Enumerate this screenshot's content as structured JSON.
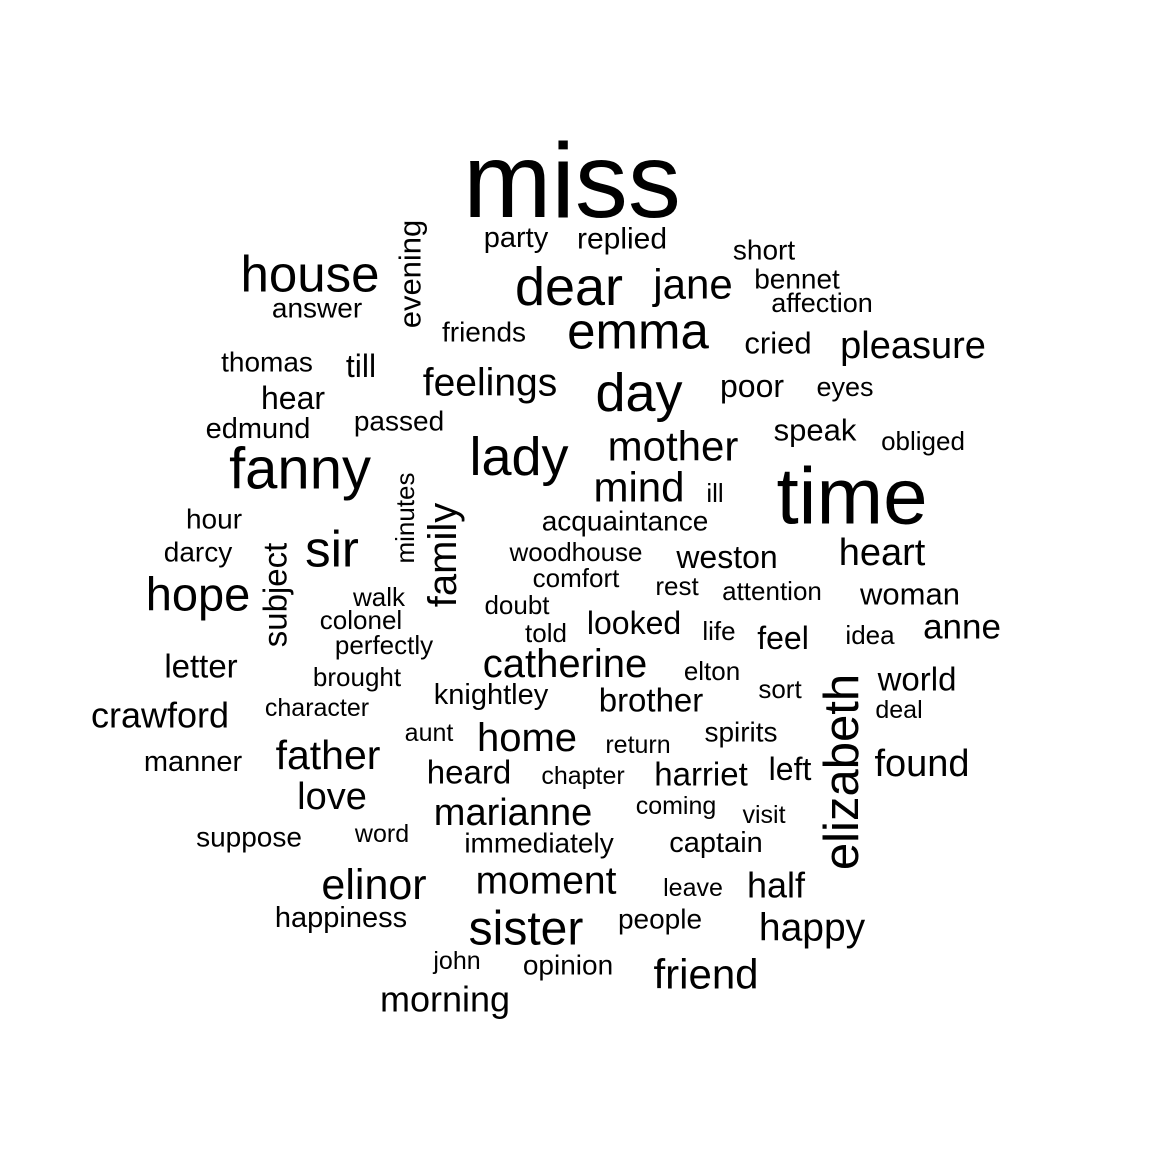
{
  "chart_data": {
    "type": "wordcloud",
    "text_color": "#000000",
    "background": "#ffffff",
    "words": [
      {
        "text": "miss",
        "weight": 100
      },
      {
        "text": "time",
        "weight": 80
      },
      {
        "text": "fanny",
        "weight": 60
      },
      {
        "text": "dear",
        "weight": 58
      },
      {
        "text": "lady",
        "weight": 57
      },
      {
        "text": "day",
        "weight": 56
      },
      {
        "text": "emma",
        "weight": 55
      },
      {
        "text": "house",
        "weight": 54
      },
      {
        "text": "sir",
        "weight": 54
      },
      {
        "text": "elizabeth",
        "weight": 52
      },
      {
        "text": "hope",
        "weight": 50
      },
      {
        "text": "sister",
        "weight": 50
      },
      {
        "text": "mother",
        "weight": 45
      },
      {
        "text": "mind",
        "weight": 45
      },
      {
        "text": "jane",
        "weight": 45
      },
      {
        "text": "catherine",
        "weight": 44
      },
      {
        "text": "elinor",
        "weight": 44
      },
      {
        "text": "family",
        "weight": 44
      },
      {
        "text": "father",
        "weight": 44
      },
      {
        "text": "friend",
        "weight": 43
      },
      {
        "text": "home",
        "weight": 42
      },
      {
        "text": "feelings",
        "weight": 42
      },
      {
        "text": "moment",
        "weight": 42
      },
      {
        "text": "heart",
        "weight": 40
      },
      {
        "text": "pleasure",
        "weight": 40
      },
      {
        "text": "happy",
        "weight": 40
      },
      {
        "text": "found",
        "weight": 40
      },
      {
        "text": "marianne",
        "weight": 40
      },
      {
        "text": "love",
        "weight": 40
      },
      {
        "text": "crawford",
        "weight": 39
      },
      {
        "text": "morning",
        "weight": 38
      },
      {
        "text": "half",
        "weight": 38
      },
      {
        "text": "weston",
        "weight": 36
      },
      {
        "text": "harriet",
        "weight": 36
      },
      {
        "text": "heard",
        "weight": 36
      },
      {
        "text": "brother",
        "weight": 36
      },
      {
        "text": "anne",
        "weight": 36
      },
      {
        "text": "letter",
        "weight": 36
      },
      {
        "text": "looked",
        "weight": 35
      },
      {
        "text": "till",
        "weight": 35
      },
      {
        "text": "world",
        "weight": 35
      },
      {
        "text": "subject",
        "weight": 35
      },
      {
        "text": "woman",
        "weight": 34
      },
      {
        "text": "poor",
        "weight": 34
      },
      {
        "text": "feel",
        "weight": 34
      },
      {
        "text": "hear",
        "weight": 34
      },
      {
        "text": "speak",
        "weight": 34
      },
      {
        "text": "cried",
        "weight": 34
      },
      {
        "text": "left",
        "weight": 34
      },
      {
        "text": "evening",
        "weight": 34
      },
      {
        "text": "replied",
        "weight": 33
      },
      {
        "text": "edmund",
        "weight": 32
      },
      {
        "text": "knightley",
        "weight": 32
      },
      {
        "text": "manner",
        "weight": 32
      },
      {
        "text": "happiness",
        "weight": 32
      },
      {
        "text": "captain",
        "weight": 32
      },
      {
        "text": "party",
        "weight": 31
      },
      {
        "text": "short",
        "weight": 31
      },
      {
        "text": "thomas",
        "weight": 30
      },
      {
        "text": "bennet",
        "weight": 30
      },
      {
        "text": "answer",
        "weight": 30
      },
      {
        "text": "friends",
        "weight": 30
      },
      {
        "text": "acquaintance",
        "weight": 30
      },
      {
        "text": "passed",
        "weight": 30
      },
      {
        "text": "darcy",
        "weight": 30
      },
      {
        "text": "hour",
        "weight": 30
      },
      {
        "text": "spirits",
        "weight": 30
      },
      {
        "text": "people",
        "weight": 30
      },
      {
        "text": "immediately",
        "weight": 30
      },
      {
        "text": "suppose",
        "weight": 30
      },
      {
        "text": "opinion",
        "weight": 30
      },
      {
        "text": "eyes",
        "weight": 30
      },
      {
        "text": "affection",
        "weight": 29
      },
      {
        "text": "obliged",
        "weight": 29
      },
      {
        "text": "ill",
        "weight": 29
      },
      {
        "text": "woodhouse",
        "weight": 29
      },
      {
        "text": "minutes",
        "weight": 29
      },
      {
        "text": "comfort",
        "weight": 29
      },
      {
        "text": "walk",
        "weight": 29
      },
      {
        "text": "attention",
        "weight": 29
      },
      {
        "text": "rest",
        "weight": 29
      },
      {
        "text": "doubt",
        "weight": 29
      },
      {
        "text": "colonel",
        "weight": 29
      },
      {
        "text": "told",
        "weight": 29
      },
      {
        "text": "life",
        "weight": 29
      },
      {
        "text": "idea",
        "weight": 29
      },
      {
        "text": "perfectly",
        "weight": 29
      },
      {
        "text": "elton",
        "weight": 29
      },
      {
        "text": "brought",
        "weight": 29
      },
      {
        "text": "sort",
        "weight": 29
      },
      {
        "text": "character",
        "weight": 28
      },
      {
        "text": "deal",
        "weight": 28
      },
      {
        "text": "aunt",
        "weight": 28
      },
      {
        "text": "return",
        "weight": 28
      },
      {
        "text": "chapter",
        "weight": 28
      },
      {
        "text": "coming",
        "weight": 28
      },
      {
        "text": "visit",
        "weight": 28
      },
      {
        "text": "word",
        "weight": 28
      },
      {
        "text": "leave",
        "weight": 28
      },
      {
        "text": "john",
        "weight": 28
      }
    ]
  }
}
